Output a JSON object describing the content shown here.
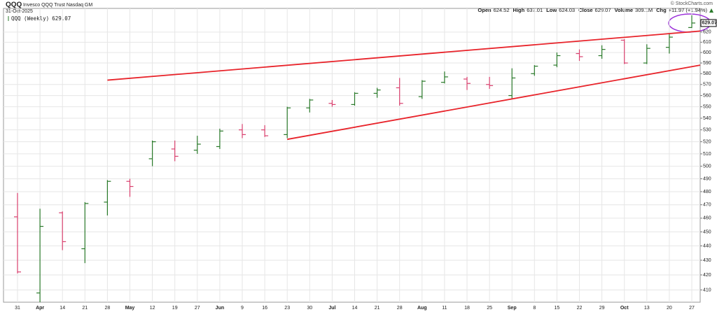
{
  "chart_data": {
    "type": "ohlc",
    "title": "QQQ",
    "subtitle": "Invesco QQQ Trust Nasdaq GM",
    "date": "31-Oct-2025",
    "credit": "© StockCharts.com",
    "quote": [
      {
        "label": "Open",
        "value": 624.52
      },
      {
        "label": "High",
        "value": 637.01
      },
      {
        "label": "Low",
        "value": 624.03
      },
      {
        "label": "Close",
        "value": 629.07
      },
      {
        "label": "Volume",
        "value": "309.1M"
      },
      {
        "label": "Chg",
        "value": "+11.97 (+1.94%)"
      }
    ],
    "legend_label": "QQQ (Weekly)",
    "categories": [
      "31",
      "Apr",
      "14",
      "21",
      "28",
      "May",
      "12",
      "19",
      "27",
      "Jun",
      "9",
      "16",
      "23",
      "30",
      "Jul",
      "14",
      "21",
      "28",
      "Aug",
      "11",
      "18",
      "25",
      "Sep",
      "8",
      "15",
      "22",
      "29",
      "Oct",
      "13",
      "20",
      "27"
    ],
    "series": {
      "open": [
        461,
        408,
        464,
        438,
        472,
        488,
        506,
        514,
        513,
        516,
        530,
        530,
        526,
        549,
        553,
        552,
        562,
        567,
        559,
        572,
        575,
        570,
        560,
        580,
        588,
        599,
        597,
        612,
        590,
        605,
        624.52
      ],
      "high": [
        479,
        467,
        465,
        472,
        489,
        490,
        521,
        521,
        525,
        531,
        535,
        534,
        550,
        557,
        556,
        563,
        567,
        576,
        574,
        582,
        577,
        577,
        585,
        588,
        600,
        603,
        607,
        613,
        608,
        619,
        637.01
      ],
      "low": [
        421,
        402,
        437,
        428,
        462,
        476,
        500,
        504,
        510,
        514,
        523,
        524,
        523,
        545,
        550,
        551,
        558,
        551,
        557,
        571,
        565,
        566,
        557,
        578,
        586,
        592,
        594,
        589,
        589,
        599,
        624.03
      ],
      "close": [
        422,
        454,
        443,
        471,
        488,
        484,
        520,
        508,
        518,
        529,
        526,
        525,
        549,
        556,
        552,
        562,
        565,
        553,
        573,
        577,
        571,
        569,
        576,
        587,
        597,
        596,
        603,
        590,
        604,
        615,
        629.07
      ]
    },
    "up_color": "#2a7a2a",
    "down_color": "#d9406e",
    "trend_lines": [
      {
        "start_category": "28",
        "start": 574,
        "end": 621
      },
      {
        "start_category": "23",
        "start": 522,
        "end": 588
      }
    ],
    "trend_color": "#e8232a",
    "ylim": [
      402,
      644
    ],
    "yticks": [
      410,
      420,
      430,
      440,
      450,
      460,
      470,
      480,
      490,
      500,
      510,
      520,
      530,
      540,
      550,
      560,
      570,
      580,
      590,
      600,
      610,
      620
    ],
    "log_scale": true,
    "grid": true
  }
}
